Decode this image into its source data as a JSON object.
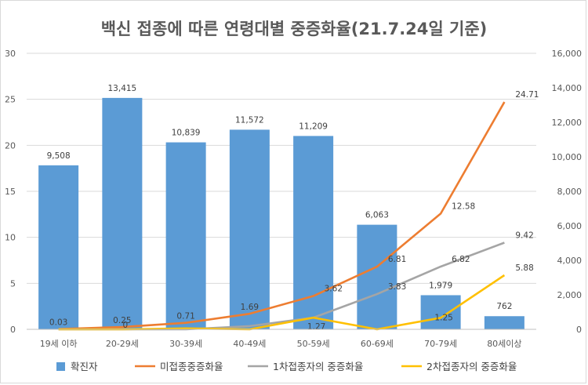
{
  "chart_data": {
    "type": "bar",
    "title": "백신 접종에 따른 연령대별 중증화율(21.7.24일 기준)",
    "categories": [
      "19세 이하",
      "20-29세",
      "30-39세",
      "40-49세",
      "50-59세",
      "60-69세",
      "70-79세",
      "80세이상"
    ],
    "y_left": {
      "min": 0,
      "max": 30,
      "ticks": [
        "0",
        "5",
        "10",
        "15",
        "20",
        "25",
        "30"
      ]
    },
    "y_right": {
      "min": 0,
      "max": 16000,
      "ticks": [
        "0",
        "2,000",
        "4,000",
        "6,000",
        "8,000",
        "10,000",
        "12,000",
        "14,000",
        "16,000"
      ]
    },
    "bar_series": {
      "name": "확진자",
      "axis": "right",
      "color": "#5b9bd5",
      "values": [
        9508,
        13415,
        10839,
        11572,
        11209,
        6063,
        1979,
        762
      ],
      "labels": [
        "9,508",
        "13,415",
        "10,839",
        "11,572",
        "11,209",
        "6,063",
        "1,979",
        "762"
      ]
    },
    "line_series": [
      {
        "name": "미접종중증화율",
        "axis": "left",
        "color": "#ed7d31",
        "values": [
          0.03,
          0.25,
          0.71,
          1.69,
          3.62,
          6.81,
          12.58,
          24.71
        ],
        "labels": [
          "0.03",
          "0.25",
          "0.71",
          "1.69",
          "3.62",
          "6.81",
          "12.58",
          "24.71"
        ]
      },
      {
        "name": "1차접종자의 중증화율",
        "axis": "left",
        "color": "#a5a5a5",
        "values": [
          0,
          0,
          0,
          0.35,
          1.27,
          3.83,
          6.82,
          9.42
        ],
        "labels": [
          "",
          "",
          "",
          "",
          "1.27",
          "3.83",
          "6.82",
          "9.42"
        ]
      },
      {
        "name": "2차접종자의 중증화율",
        "axis": "left",
        "color": "#ffc000",
        "values": [
          0,
          0,
          0.1,
          0,
          1.27,
          0,
          1.25,
          5.88
        ],
        "labels": [
          "",
          "0",
          "",
          "",
          "",
          "",
          "1.25",
          "5.88"
        ]
      }
    ]
  }
}
